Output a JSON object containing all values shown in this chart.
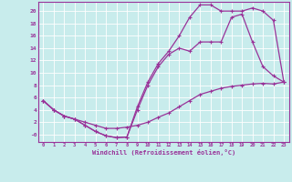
{
  "xlabel": "Windchill (Refroidissement éolien,°C)",
  "background_color": "#c8ecec",
  "line_color": "#993399",
  "grid_color": "#ffffff",
  "xlim": [
    -0.5,
    23.5
  ],
  "ylim": [
    -1.2,
    21.5
  ],
  "xticks": [
    0,
    1,
    2,
    3,
    4,
    5,
    6,
    7,
    8,
    9,
    10,
    11,
    12,
    13,
    14,
    15,
    16,
    17,
    18,
    19,
    20,
    21,
    22,
    23
  ],
  "yticks": [
    0,
    2,
    4,
    6,
    8,
    10,
    12,
    14,
    16,
    18,
    20
  ],
  "ytick_labels": [
    "-0",
    "2",
    "4",
    "6",
    "8",
    "10",
    "12",
    "14",
    "16",
    "18",
    "20"
  ],
  "line1_x": [
    0,
    1,
    2,
    3,
    4,
    5,
    6,
    7,
    8,
    9,
    10,
    11,
    12,
    13,
    14,
    15,
    16,
    17,
    18,
    19,
    20,
    21,
    22,
    23
  ],
  "line1_y": [
    5.5,
    4.0,
    3.0,
    2.5,
    2.0,
    1.5,
    1.0,
    1.0,
    1.2,
    1.5,
    2.0,
    2.8,
    3.5,
    4.5,
    5.5,
    6.5,
    7.0,
    7.5,
    7.8,
    8.0,
    8.2,
    8.3,
    8.2,
    8.5
  ],
  "line2_x": [
    0,
    1,
    2,
    3,
    4,
    5,
    6,
    7,
    8,
    9,
    10,
    11,
    12,
    13,
    14,
    15,
    16,
    17,
    18,
    19,
    20,
    21,
    22,
    23
  ],
  "line2_y": [
    5.5,
    4.0,
    3.0,
    2.5,
    1.5,
    0.5,
    -0.2,
    -0.5,
    -0.4,
    4.0,
    8.0,
    11.0,
    13.0,
    14.0,
    13.5,
    15.0,
    15.0,
    15.0,
    19.0,
    19.5,
    15.0,
    11.0,
    9.5,
    8.5
  ],
  "line3_x": [
    0,
    1,
    2,
    3,
    4,
    5,
    6,
    7,
    8,
    9,
    10,
    11,
    12,
    13,
    14,
    15,
    16,
    17,
    18,
    19,
    20,
    21,
    22,
    23
  ],
  "line3_y": [
    5.5,
    4.0,
    3.0,
    2.5,
    1.5,
    0.5,
    -0.2,
    -0.5,
    -0.4,
    4.5,
    8.5,
    11.5,
    13.5,
    16.0,
    19.0,
    21.0,
    21.0,
    20.0,
    20.0,
    20.0,
    20.5,
    20.0,
    18.5,
    8.5
  ],
  "marker": "+",
  "markersize": 3.0,
  "linewidth": 0.9
}
